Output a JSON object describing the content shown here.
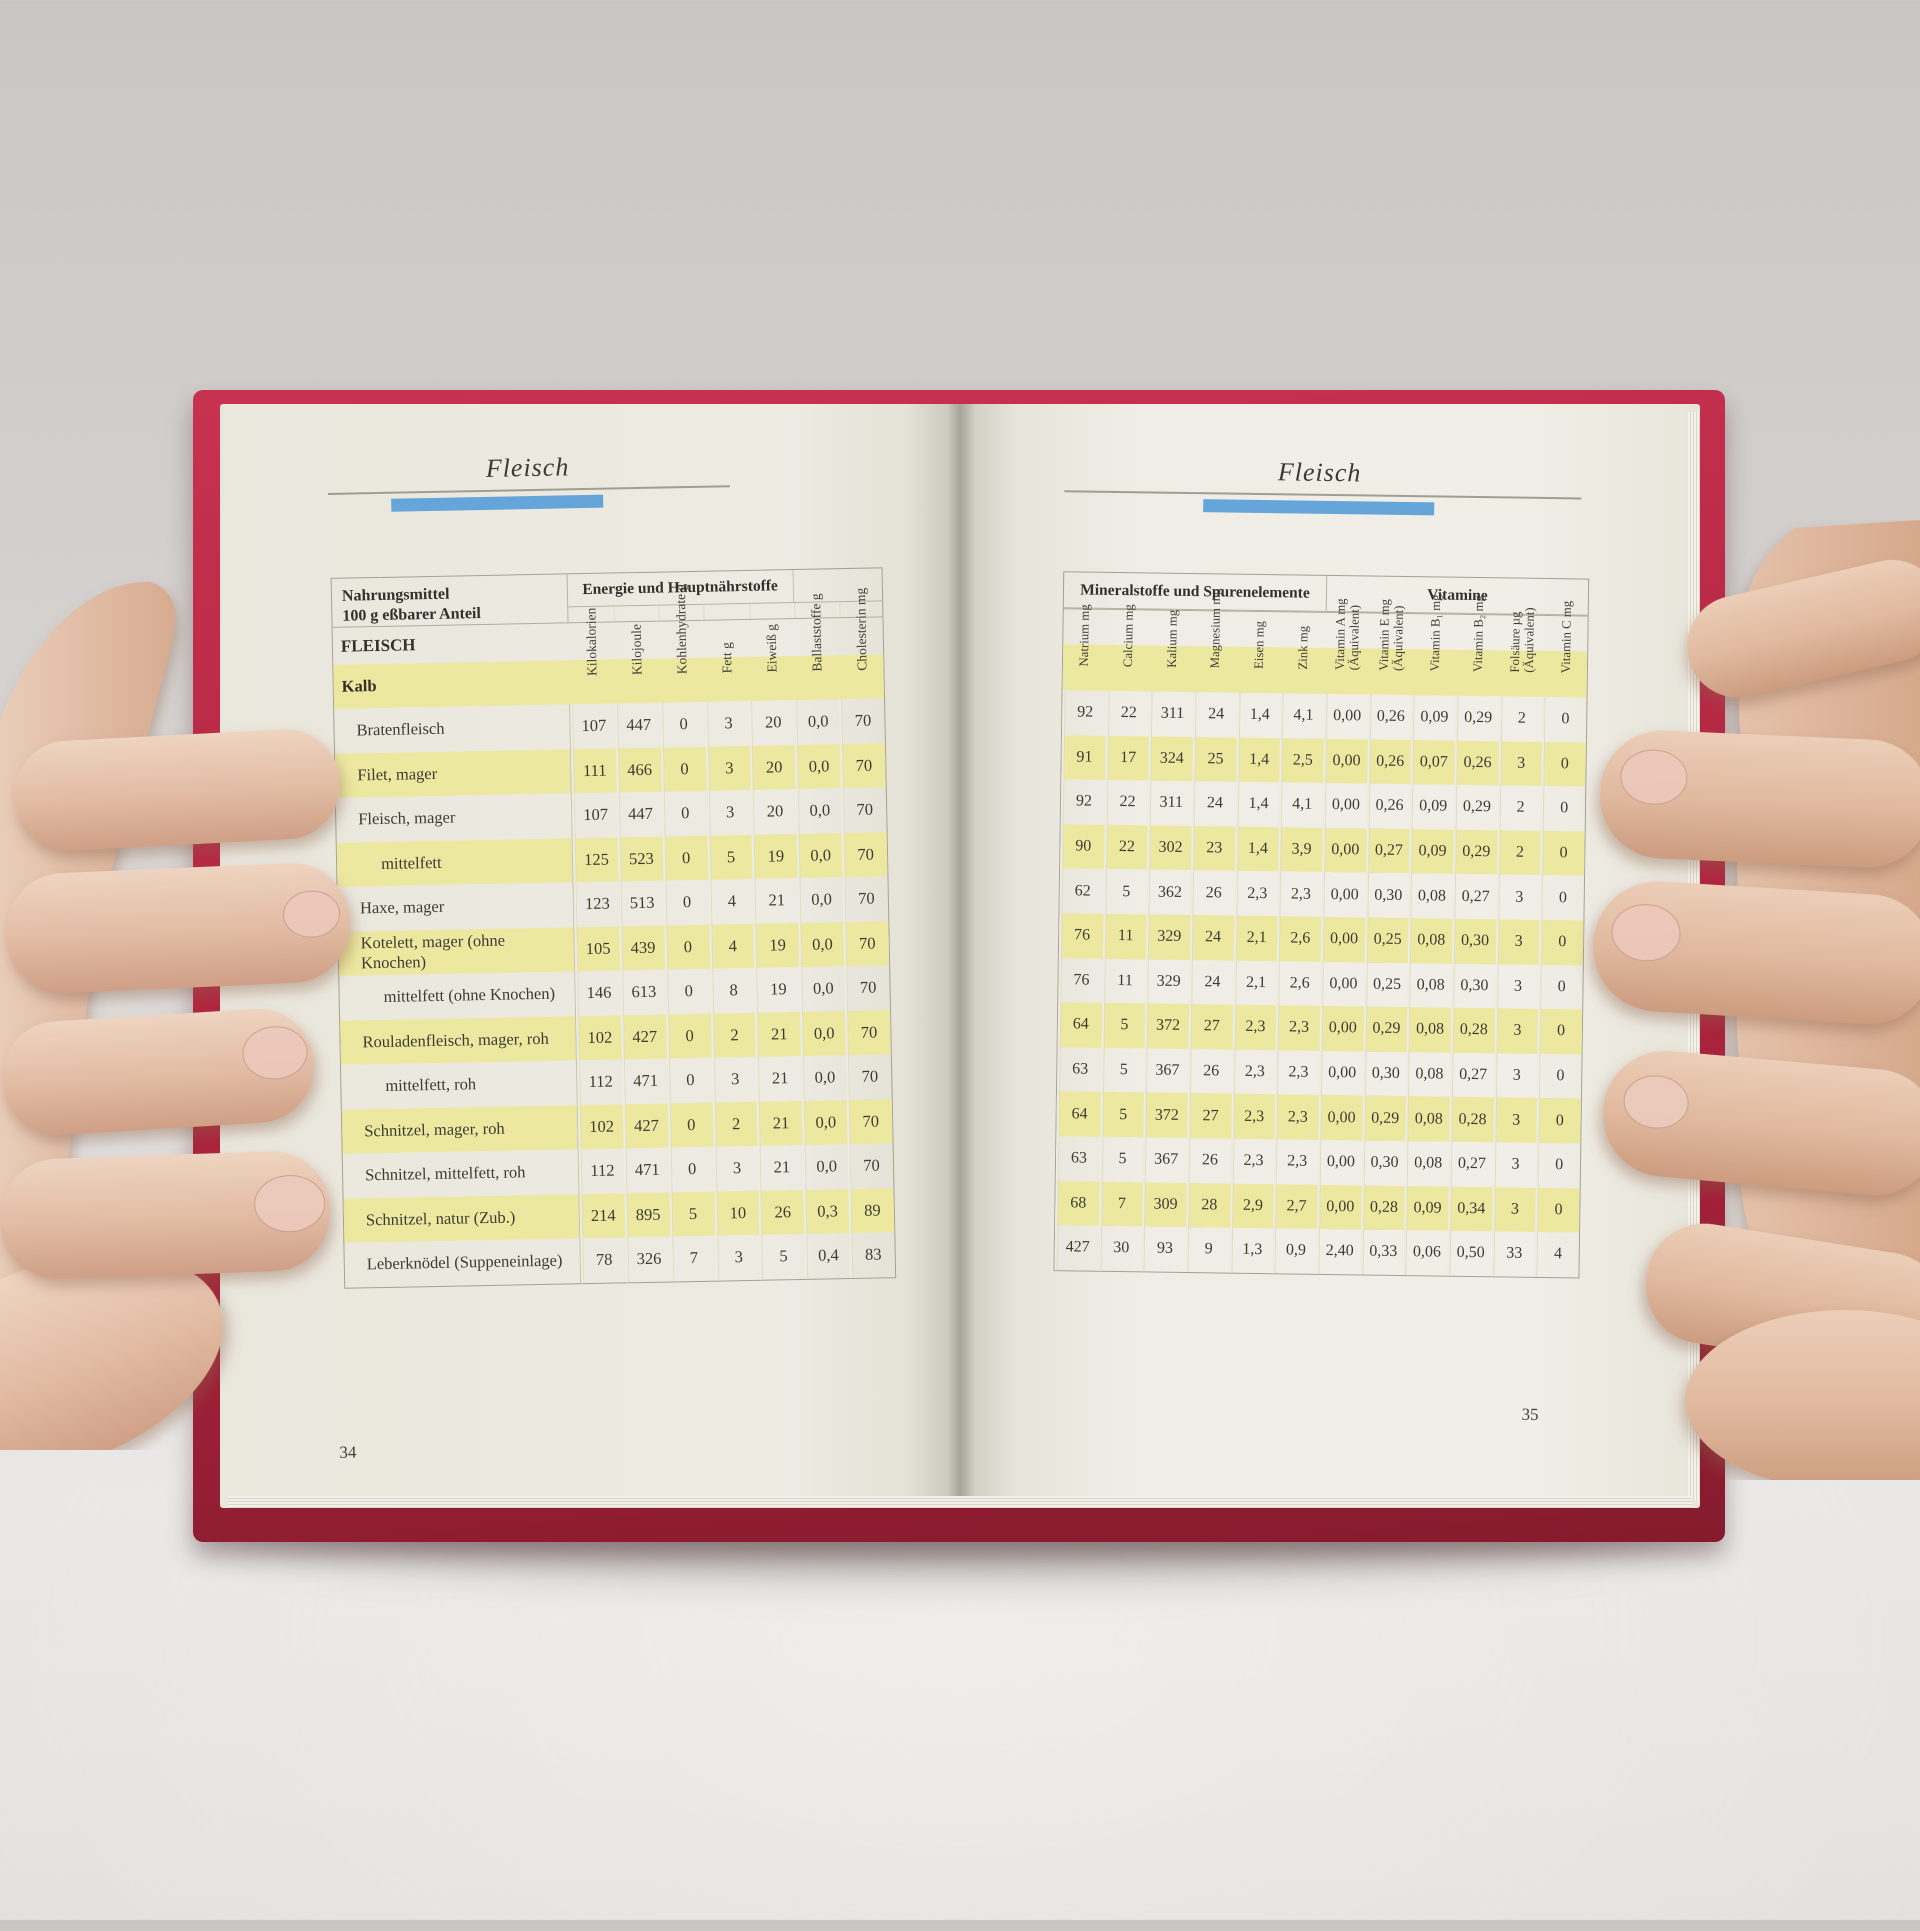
{
  "book": {
    "left_page": {
      "running_head": "Fleisch",
      "page_number": "34",
      "table": {
        "row_header": "Nahrungsmittel\n100 g eßbarer Anteil",
        "group_header": "Energie und Hauptnährstoffe",
        "columns": [
          "Kilokalorien",
          "Kilojoule",
          "Kohlenhydrate g",
          "Fett g",
          "Eiweiß g",
          "Ballaststoffe g",
          "Cholesterin mg"
        ],
        "section_label": "FLEISCH",
        "subsection_label": "Kalb",
        "rows": [
          {
            "label": "Bratenfleisch",
            "indent": 1,
            "highlight": false,
            "values": [
              "107",
              "447",
              "0",
              "3",
              "20",
              "0,0",
              "70"
            ]
          },
          {
            "label": "Filet, mager",
            "indent": 1,
            "highlight": true,
            "values": [
              "111",
              "466",
              "0",
              "3",
              "20",
              "0,0",
              "70"
            ]
          },
          {
            "label": "Fleisch, mager",
            "indent": 1,
            "highlight": false,
            "values": [
              "107",
              "447",
              "0",
              "3",
              "20",
              "0,0",
              "70"
            ]
          },
          {
            "label": "mittelfett",
            "indent": 2,
            "highlight": true,
            "values": [
              "125",
              "523",
              "0",
              "5",
              "19",
              "0,0",
              "70"
            ]
          },
          {
            "label": "Haxe, mager",
            "indent": 1,
            "highlight": false,
            "values": [
              "123",
              "513",
              "0",
              "4",
              "21",
              "0,0",
              "70"
            ]
          },
          {
            "label": "Kotelett, mager (ohne Knochen)",
            "indent": 1,
            "highlight": true,
            "values": [
              "105",
              "439",
              "0",
              "4",
              "19",
              "0,0",
              "70"
            ]
          },
          {
            "label": "mittelfett (ohne Knochen)",
            "indent": 2,
            "highlight": false,
            "values": [
              "146",
              "613",
              "0",
              "8",
              "19",
              "0,0",
              "70"
            ]
          },
          {
            "label": "Rouladenfleisch, mager, roh",
            "indent": 1,
            "highlight": true,
            "values": [
              "102",
              "427",
              "0",
              "2",
              "21",
              "0,0",
              "70"
            ]
          },
          {
            "label": "mittelfett, roh",
            "indent": 2,
            "highlight": false,
            "values": [
              "112",
              "471",
              "0",
              "3",
              "21",
              "0,0",
              "70"
            ]
          },
          {
            "label": "Schnitzel, mager, roh",
            "indent": 1,
            "highlight": true,
            "values": [
              "102",
              "427",
              "0",
              "2",
              "21",
              "0,0",
              "70"
            ]
          },
          {
            "label": "Schnitzel, mittelfett, roh",
            "indent": 1,
            "highlight": false,
            "values": [
              "112",
              "471",
              "0",
              "3",
              "21",
              "0,0",
              "70"
            ]
          },
          {
            "label": "Schnitzel, natur (Zub.)",
            "indent": 1,
            "highlight": true,
            "values": [
              "214",
              "895",
              "5",
              "10",
              "26",
              "0,3",
              "89"
            ]
          },
          {
            "label": "Leberknödel (Suppeneinlage)",
            "indent": 1,
            "highlight": false,
            "values": [
              "78",
              "326",
              "7",
              "3",
              "5",
              "0,4",
              "83"
            ]
          }
        ]
      }
    },
    "right_page": {
      "running_head": "Fleisch",
      "page_number": "35",
      "table": {
        "group_headers": [
          "Mineralstoffe und Spurenelemente",
          "Vitamine"
        ],
        "columns": [
          "Natrium mg",
          "Calcium mg",
          "Kalium mg",
          "Magnesium mg",
          "Eisen mg",
          "Zink mg",
          "Vitamin A mg (Äquivalent)",
          "Vitamin E mg (Äquivalent)",
          "Vitamin B₁ mg",
          "Vitamin B₂ mg",
          "Folsäure µg (Äquivalent)",
          "Vitamin C mg"
        ],
        "rows": [
          {
            "highlight": false,
            "values": [
              "92",
              "22",
              "311",
              "24",
              "1,4",
              "4,1",
              "0,00",
              "0,26",
              "0,09",
              "0,29",
              "2",
              "0"
            ]
          },
          {
            "highlight": true,
            "values": [
              "91",
              "17",
              "324",
              "25",
              "1,4",
              "2,5",
              "0,00",
              "0,26",
              "0,07",
              "0,26",
              "3",
              "0"
            ]
          },
          {
            "highlight": false,
            "values": [
              "92",
              "22",
              "311",
              "24",
              "1,4",
              "4,1",
              "0,00",
              "0,26",
              "0,09",
              "0,29",
              "2",
              "0"
            ]
          },
          {
            "highlight": true,
            "values": [
              "90",
              "22",
              "302",
              "23",
              "1,4",
              "3,9",
              "0,00",
              "0,27",
              "0,09",
              "0,29",
              "2",
              "0"
            ]
          },
          {
            "highlight": false,
            "values": [
              "62",
              "5",
              "362",
              "26",
              "2,3",
              "2,3",
              "0,00",
              "0,30",
              "0,08",
              "0,27",
              "3",
              "0"
            ]
          },
          {
            "highlight": true,
            "values": [
              "76",
              "11",
              "329",
              "24",
              "2,1",
              "2,6",
              "0,00",
              "0,25",
              "0,08",
              "0,30",
              "3",
              "0"
            ]
          },
          {
            "highlight": false,
            "values": [
              "76",
              "11",
              "329",
              "24",
              "2,1",
              "2,6",
              "0,00",
              "0,25",
              "0,08",
              "0,30",
              "3",
              "0"
            ]
          },
          {
            "highlight": true,
            "values": [
              "64",
              "5",
              "372",
              "27",
              "2,3",
              "2,3",
              "0,00",
              "0,29",
              "0,08",
              "0,28",
              "3",
              "0"
            ]
          },
          {
            "highlight": false,
            "values": [
              "63",
              "5",
              "367",
              "26",
              "2,3",
              "2,3",
              "0,00",
              "0,30",
              "0,08",
              "0,27",
              "3",
              "0"
            ]
          },
          {
            "highlight": true,
            "values": [
              "64",
              "5",
              "372",
              "27",
              "2,3",
              "2,3",
              "0,00",
              "0,29",
              "0,08",
              "0,28",
              "3",
              "0"
            ]
          },
          {
            "highlight": false,
            "values": [
              "63",
              "5",
              "367",
              "26",
              "2,3",
              "2,3",
              "0,00",
              "0,30",
              "0,08",
              "0,27",
              "3",
              "0"
            ]
          },
          {
            "highlight": true,
            "values": [
              "68",
              "7",
              "309",
              "28",
              "2,9",
              "2,7",
              "0,00",
              "0,28",
              "0,09",
              "0,34",
              "3",
              "0"
            ]
          },
          {
            "highlight": false,
            "values": [
              "427",
              "30",
              "93",
              "9",
              "1,3",
              "0,9",
              "2,40",
              "0,33",
              "0,06",
              "0,50",
              "33",
              "4"
            ]
          }
        ]
      }
    }
  },
  "colors": {
    "highlight_yellow": "#ece8a0",
    "accent_blue": "#66a5da",
    "cover_red": "#b02840",
    "page_cream": "#edebe2"
  }
}
